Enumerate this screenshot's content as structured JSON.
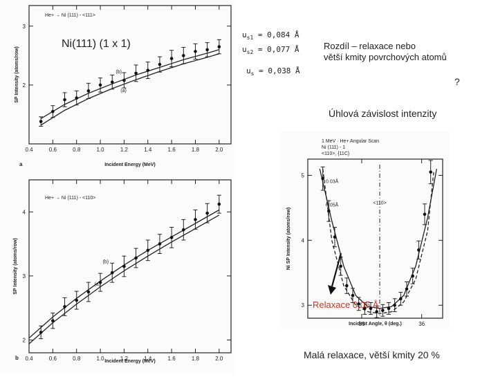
{
  "slide": {
    "title_label": "Ni(111) (1 x 1)",
    "params": [
      "u",
      "s1",
      " = 0,084 Å",
      "u",
      "s2",
      " = 0,077 Å",
      "u",
      "s",
      " = 0,038 Å"
    ],
    "note_line1": "Rozdíl – relaxace nebo",
    "note_line2": "větší kmity povrchových atomů",
    "question": "?",
    "angular_title": "Úhlová závislost intenzity",
    "relax_label": "Relaxace 0,05 Å",
    "conclusion": "Malá relaxace, větší kmity 20 %"
  },
  "chart_data": [
    {
      "id": "a",
      "type": "line",
      "title": "He+ → Ni (111) - <111>",
      "panel_letter": "a",
      "xlabel": "Incident Energy (MeV)",
      "ylabel": "SP Intensity (atoms/row)",
      "xlim": [
        0.4,
        2.1
      ],
      "ylim": [
        1.0,
        3.35
      ],
      "xticks": [
        0.4,
        0.6,
        0.8,
        1.0,
        1.2,
        1.4,
        1.6,
        1.8,
        2.0
      ],
      "xtick_labels": [
        "0.4",
        "0.6",
        "0.8",
        "1.0",
        "1.2",
        "1.4",
        "1.6",
        "1.8",
        "2.0"
      ],
      "yticks": [
        2,
        3
      ],
      "ytick_labels": [
        "2",
        "3"
      ],
      "points": {
        "x": [
          0.5,
          0.6,
          0.7,
          0.8,
          0.9,
          1.0,
          1.1,
          1.2,
          1.3,
          1.4,
          1.5,
          1.6,
          1.7,
          1.8,
          1.9,
          2.0
        ],
        "y": [
          1.38,
          1.55,
          1.75,
          1.78,
          1.9,
          2.0,
          2.05,
          2.08,
          2.2,
          2.25,
          2.35,
          2.45,
          2.5,
          2.57,
          2.6,
          2.65
        ],
        "err": [
          0.08,
          0.1,
          0.12,
          0.12,
          0.13,
          0.12,
          0.12,
          0.13,
          0.14,
          0.14,
          0.13,
          0.14,
          0.14,
          0.13,
          0.12,
          0.12
        ]
      },
      "series": [
        {
          "name": "(b)",
          "x": [
            0.5,
            0.7,
            0.9,
            1.1,
            1.3,
            1.5,
            1.7,
            1.9,
            2.0
          ],
          "y": [
            1.43,
            1.67,
            1.86,
            2.02,
            2.17,
            2.3,
            2.43,
            2.54,
            2.6
          ]
        },
        {
          "name": "(a)",
          "x": [
            0.5,
            0.7,
            0.9,
            1.1,
            1.3,
            1.5,
            1.7,
            1.9,
            2.0
          ],
          "y": [
            1.32,
            1.57,
            1.77,
            1.94,
            2.09,
            2.23,
            2.36,
            2.47,
            2.53
          ]
        }
      ],
      "curve_labels": [
        {
          "text": "(b)",
          "x": 1.13,
          "y": 2.2
        },
        {
          "text": "(a)",
          "x": 1.17,
          "y": 1.88
        }
      ]
    },
    {
      "id": "b",
      "type": "line",
      "title": "He+ → Ni (111) - <110>",
      "panel_letter": "b",
      "xlabel": "Incident Energy (MeV)",
      "ylabel": "SP Intensity (atoms/row)",
      "xlim": [
        0.4,
        2.1
      ],
      "ylim": [
        1.8,
        4.5
      ],
      "xticks": [
        0.4,
        0.6,
        0.8,
        1.0,
        1.2,
        1.4,
        1.6,
        1.8,
        2.0
      ],
      "xtick_labels": [
        "0.4",
        "0.6",
        "0.8",
        "1.0",
        "1.2",
        "1.4",
        "1.6",
        "1.8",
        "2.0"
      ],
      "yticks": [
        2,
        3,
        4
      ],
      "ytick_labels": [
        "2",
        "3",
        "4"
      ],
      "points": {
        "x": [
          0.5,
          0.6,
          0.7,
          0.8,
          0.9,
          1.0,
          1.1,
          1.2,
          1.3,
          1.4,
          1.5,
          1.6,
          1.7,
          1.8,
          1.9,
          2.0
        ],
        "y": [
          2.12,
          2.3,
          2.52,
          2.62,
          2.75,
          2.9,
          3.05,
          3.15,
          3.28,
          3.4,
          3.5,
          3.6,
          3.72,
          3.88,
          3.98,
          4.12
        ],
        "err": [
          0.1,
          0.12,
          0.14,
          0.14,
          0.15,
          0.14,
          0.15,
          0.16,
          0.15,
          0.16,
          0.15,
          0.16,
          0.16,
          0.15,
          0.15,
          0.14
        ]
      },
      "series": [
        {
          "name": "(b)",
          "x": [
            0.4,
            0.6,
            0.8,
            1.0,
            1.2,
            1.4,
            1.6,
            1.8,
            2.0
          ],
          "y": [
            2.03,
            2.36,
            2.65,
            2.92,
            3.17,
            3.4,
            3.61,
            3.82,
            4.03
          ]
        },
        {
          "name": "(a)",
          "x": [
            0.4,
            0.6,
            0.8,
            1.0,
            1.2,
            1.4,
            1.6,
            1.8,
            2.0
          ],
          "y": [
            1.94,
            2.27,
            2.56,
            2.83,
            3.08,
            3.31,
            3.53,
            3.74,
            3.95
          ]
        }
      ],
      "curve_labels": [
        {
          "text": "(b)",
          "x": 1.02,
          "y": 3.2
        },
        {
          "text": "(a)",
          "x": 0.95,
          "y": 2.85
        }
      ]
    },
    {
      "id": "c",
      "type": "line",
      "title_lines": [
        "1 MeV · He+ Angular Scan",
        "Ni (111) - 1",
        "<110>, {11C}"
      ],
      "xlabel": "Incident Angle, θ (deg.)",
      "ylabel": "Ni SP Intensity (atoms/row)",
      "xlim": [
        34.1,
        36.35
      ],
      "ylim": [
        2.8,
        5.25
      ],
      "xticks": [
        35,
        36
      ],
      "xtick_labels": [
        "35",
        "36"
      ],
      "yticks": [
        3,
        4,
        5
      ],
      "ytick_labels": [
        "3",
        "4",
        "5"
      ],
      "center_label": "<110>",
      "center_x": 35.3,
      "points": {
        "x": [
          34.35,
          34.45,
          34.55,
          34.65,
          34.75,
          34.85,
          34.95,
          35.05,
          35.15,
          35.25,
          35.35,
          35.45,
          35.55,
          35.65,
          35.75,
          35.85,
          35.95,
          36.05,
          36.15
        ],
        "y": [
          4.95,
          4.45,
          4.05,
          3.6,
          3.3,
          3.15,
          3.02,
          2.95,
          2.95,
          2.9,
          2.92,
          2.95,
          3.0,
          3.1,
          3.25,
          3.45,
          3.85,
          4.4,
          5.05
        ],
        "err": [
          0.18,
          0.16,
          0.15,
          0.14,
          0.12,
          0.11,
          0.1,
          0.09,
          0.09,
          0.09,
          0.09,
          0.09,
          0.1,
          0.1,
          0.11,
          0.12,
          0.14,
          0.16,
          0.18
        ]
      },
      "series": [
        {
          "name": "0.03Å",
          "style": "solid",
          "x": [
            34.3,
            34.5,
            34.7,
            34.9,
            35.1,
            35.3,
            35.5,
            35.7,
            35.9,
            36.1,
            36.25
          ],
          "y": [
            5.1,
            4.3,
            3.6,
            3.15,
            2.98,
            2.95,
            2.98,
            3.15,
            3.6,
            4.35,
            5.1
          ]
        },
        {
          "name": "0.05Å",
          "style": "dashed",
          "x": [
            34.35,
            34.5,
            34.7,
            34.9,
            35.1,
            35.3,
            35.5,
            35.7,
            35.9,
            36.1,
            36.2
          ],
          "y": [
            5.1,
            4.0,
            3.3,
            3.0,
            2.9,
            2.87,
            2.9,
            3.05,
            3.4,
            4.15,
            5.05
          ]
        }
      ],
      "curve_labels": [
        {
          "text": "0.03Å",
          "x": 34.4,
          "y": 4.88
        },
        {
          "text": "0.05Å",
          "x": 34.4,
          "y": 4.52
        }
      ]
    }
  ]
}
